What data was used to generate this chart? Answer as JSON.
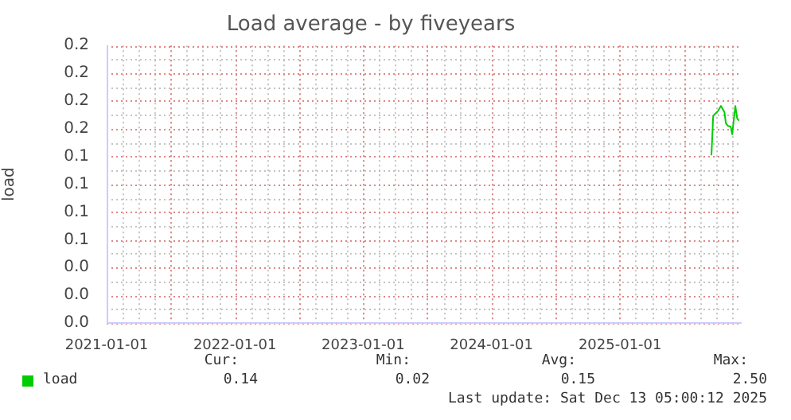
{
  "chart_data": {
    "type": "line",
    "title": "Load average - by fiveyears",
    "ylabel": "load",
    "x": [
      "2025-09-18",
      "2025-09-23",
      "2025-10-07",
      "2025-10-15",
      "2025-10-25",
      "2025-10-29",
      "2025-11-03",
      "2025-11-12",
      "2025-11-16",
      "2025-11-25",
      "2025-11-30",
      "2025-12-05"
    ],
    "series": [
      {
        "name": "load",
        "color": "#00cc00",
        "values": [
          0.136,
          0.168,
          0.172,
          0.176,
          0.171,
          0.162,
          0.16,
          0.159,
          0.153,
          0.176,
          0.166,
          0.164
        ]
      }
    ],
    "xlim": [
      "2021-01-01",
      "2025-12-13"
    ],
    "xticks": [
      {
        "value": "2021-01-01",
        "label": "2021-01-01"
      },
      {
        "value": "2022-01-01",
        "label": "2022-01-01"
      },
      {
        "value": "2023-01-01",
        "label": "2023-01-01"
      },
      {
        "value": "2024-01-01",
        "label": "2024-01-01"
      },
      {
        "value": "2025-01-01",
        "label": "2025-01-01"
      }
    ],
    "ylim": [
      0,
      0.225
    ],
    "yticks": [
      {
        "value": 0,
        "label": "0.0"
      },
      {
        "value": 0.0225,
        "label": "0.0"
      },
      {
        "value": 0.045,
        "label": "0.0"
      },
      {
        "value": 0.0675,
        "label": "0.1"
      },
      {
        "value": 0.09,
        "label": "0.1"
      },
      {
        "value": 0.1125,
        "label": "0.1"
      },
      {
        "value": 0.135,
        "label": "0.1"
      },
      {
        "value": 0.1575,
        "label": "0.2"
      },
      {
        "value": 0.18,
        "label": "0.2"
      },
      {
        "value": 0.2025,
        "label": "0.2"
      },
      {
        "value": 0.225,
        "label": "0.2"
      }
    ],
    "grid": true,
    "legend": "bottom left",
    "marker": "none",
    "line_style": "solid",
    "annotations": [
      "Cur:",
      "Min:",
      "Avg:",
      "Max:",
      "0.14",
      "0.02",
      "0.15",
      "2.50",
      "Last update: Sat Dec 13 05:00:12 2025"
    ]
  }
}
